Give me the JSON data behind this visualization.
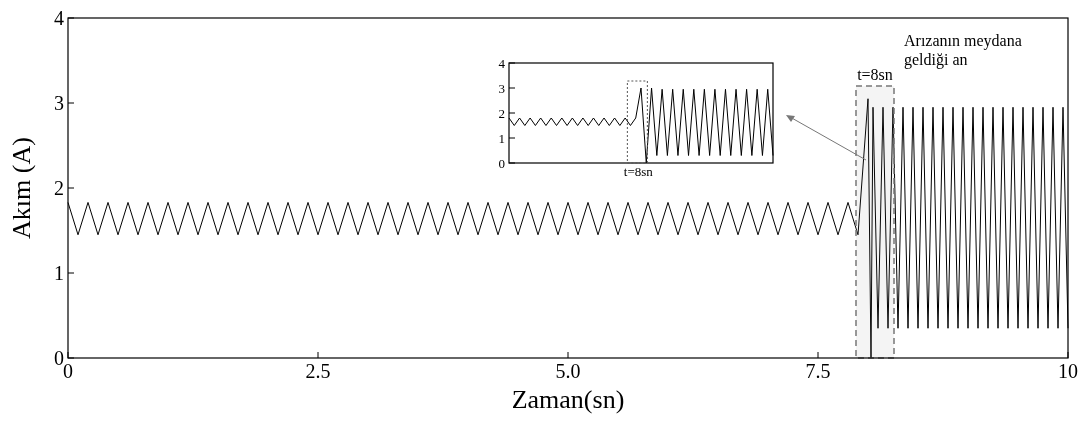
{
  "chart_data": [
    {
      "type": "line",
      "xlabel": "Zaman(sn)",
      "ylabel": "Akım (A)",
      "xlim": [
        0,
        10
      ],
      "ylim": [
        0,
        4
      ],
      "xticks": [
        0,
        2.5,
        {
          "value": 5,
          "label": "5.0"
        },
        7.5,
        10
      ],
      "yticks": [
        0,
        1,
        2,
        3,
        4
      ],
      "grid": false,
      "series": [
        {
          "color": "#000000",
          "x": [
            0,
            0.1,
            0.2,
            0.3,
            0.4,
            0.5,
            0.6,
            0.7,
            0.8,
            0.9,
            1,
            1.1,
            1.2,
            1.3,
            1.4,
            1.5,
            1.6,
            1.7,
            1.8,
            1.9,
            2,
            2.1,
            2.2,
            2.3,
            2.4,
            2.5,
            2.6,
            2.7,
            2.8,
            2.9,
            3,
            3.1,
            3.2,
            3.3,
            3.4,
            3.5,
            3.6,
            3.7,
            3.8,
            3.9,
            4,
            4.1,
            4.2,
            4.3,
            4.4,
            4.5,
            4.6,
            4.7,
            4.8,
            4.9,
            5,
            5.1,
            5.2,
            5.3,
            5.4,
            5.5,
            5.6,
            5.7,
            5.8,
            5.9,
            6,
            6.1,
            6.2,
            6.3,
            6.4,
            6.5,
            6.6,
            6.7,
            6.8,
            6.9,
            7,
            7.1,
            7.2,
            7.3,
            7.4,
            7.5,
            7.6,
            7.7,
            7.8,
            7.9,
            8,
            8.03,
            8.05,
            8.1,
            8.15,
            8.2,
            8.25,
            8.3,
            8.35,
            8.4,
            8.45,
            8.5,
            8.55,
            8.6,
            8.65,
            8.7,
            8.75,
            8.8,
            8.85,
            8.9,
            8.95,
            9,
            9.05,
            9.1,
            9.15,
            9.2,
            9.25,
            9.3,
            9.35,
            9.4,
            9.45,
            9.5,
            9.55,
            9.6,
            9.65,
            9.7,
            9.75,
            9.8,
            9.85,
            9.9,
            9.95,
            10
          ],
          "values": [
            1.83,
            1.45,
            1.83,
            1.45,
            1.83,
            1.45,
            1.83,
            1.45,
            1.83,
            1.45,
            1.83,
            1.45,
            1.83,
            1.45,
            1.83,
            1.45,
            1.83,
            1.45,
            1.83,
            1.45,
            1.83,
            1.45,
            1.83,
            1.45,
            1.83,
            1.45,
            1.83,
            1.45,
            1.83,
            1.45,
            1.83,
            1.45,
            1.83,
            1.45,
            1.83,
            1.45,
            1.83,
            1.45,
            1.83,
            1.45,
            1.83,
            1.45,
            1.83,
            1.45,
            1.83,
            1.45,
            1.83,
            1.45,
            1.83,
            1.45,
            1.83,
            1.45,
            1.83,
            1.45,
            1.83,
            1.45,
            1.83,
            1.45,
            1.83,
            1.45,
            1.83,
            1.45,
            1.83,
            1.45,
            1.83,
            1.45,
            1.83,
            1.45,
            1.83,
            1.45,
            1.83,
            1.45,
            1.83,
            1.45,
            1.83,
            1.45,
            1.83,
            1.45,
            1.83,
            1.45,
            3.05,
            0,
            2.95,
            0.35,
            2.95,
            0.35,
            2.95,
            0.35,
            2.95,
            0.35,
            2.95,
            0.35,
            2.95,
            0.35,
            2.95,
            0.35,
            2.95,
            0.35,
            2.95,
            0.35,
            2.95,
            0.35,
            2.95,
            0.35,
            2.95,
            0.35,
            2.95,
            0.35,
            2.95,
            0.35,
            2.95,
            0.35,
            2.95,
            0.35,
            2.95,
            0.35,
            2.95,
            0.35,
            2.95,
            0.35,
            2.95,
            0.35
          ]
        }
      ],
      "bands": [
        {
          "axis": "x",
          "from": 7.88,
          "to": 8.26,
          "label": "t=8sn",
          "color": "#777777"
        }
      ],
      "annotations": [
        "Arızanın meydana geldiği an"
      ]
    },
    {
      "type": "line",
      "categories": [
        null,
        null,
        null,
        null,
        null,
        null,
        null,
        null,
        null,
        null,
        null,
        null,
        null,
        null,
        null,
        null,
        null,
        null,
        null,
        null,
        null,
        null,
        null,
        null,
        null,
        null,
        null,
        null,
        null,
        null,
        null,
        null,
        null,
        null,
        null,
        null,
        null,
        null,
        null,
        null,
        null,
        null,
        null,
        null,
        null,
        null,
        null,
        null,
        null,
        null,
        null
      ],
      "ylim": [
        0,
        4
      ],
      "yticks": [
        0,
        1,
        2,
        3,
        4
      ],
      "grid": false,
      "annotations": [
        "t=8sn"
      ],
      "series": [
        {
          "color": "#000000",
          "values": [
            1.8,
            1.5,
            1.8,
            1.5,
            1.8,
            1.5,
            1.8,
            1.5,
            1.8,
            1.5,
            1.8,
            1.5,
            1.8,
            1.5,
            1.8,
            1.5,
            1.8,
            1.5,
            1.8,
            1.5,
            1.8,
            1.5,
            1.8,
            1.5,
            1.8,
            3,
            0,
            3,
            0.3,
            2.95,
            0.3,
            2.95,
            0.3,
            2.95,
            0.3,
            2.95,
            0.3,
            2.95,
            0.3,
            2.95,
            0.3,
            2.95,
            0.3,
            2.95,
            0.3,
            2.95,
            0.3,
            2.95,
            0.3,
            2.95,
            0.3
          ]
        }
      ]
    }
  ]
}
